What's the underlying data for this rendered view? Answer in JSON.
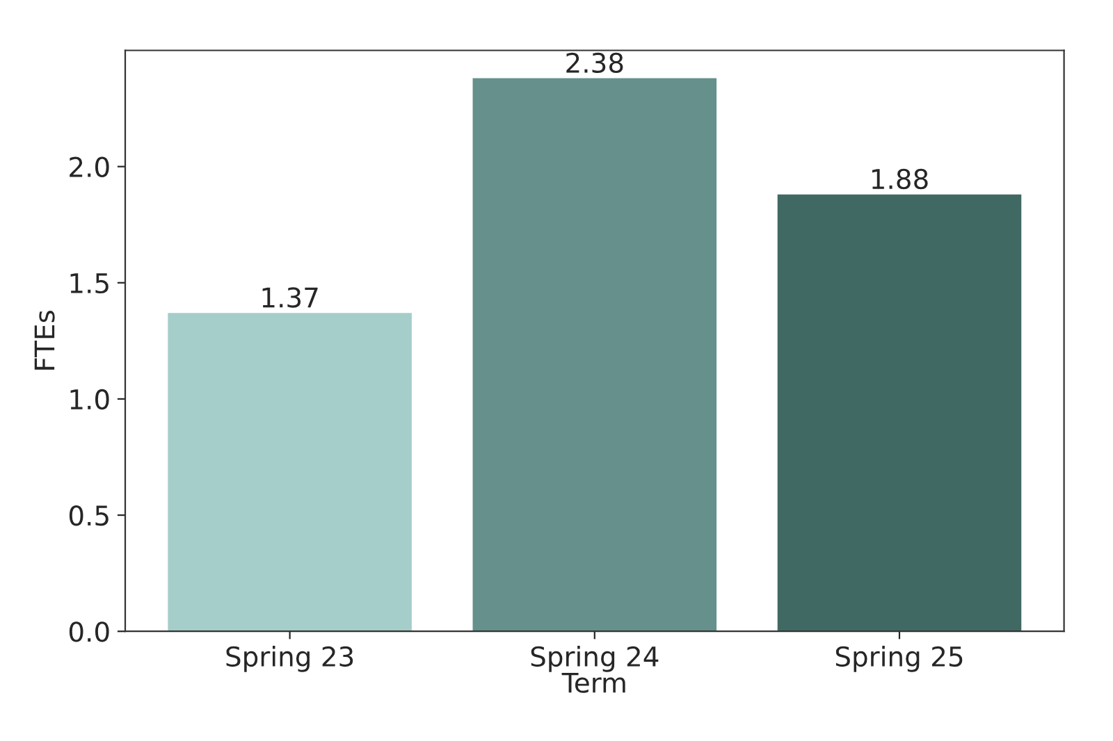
{
  "chart_data": {
    "type": "bar",
    "xlabel": "Term",
    "ylabel": "FTEs",
    "categories": [
      "Spring 23",
      "Spring 24",
      "Spring 25"
    ],
    "values": [
      1.37,
      2.38,
      1.88
    ],
    "colors": [
      "#a5cdc9",
      "#65908c",
      "#416964"
    ],
    "ylim": [
      0,
      2.5
    ],
    "yticks": [
      {
        "value": 0,
        "label": "0.0"
      },
      0.5,
      {
        "value": 1,
        "label": "1.0"
      },
      1.5,
      {
        "value": 2,
        "label": "2.0"
      }
    ],
    "data_labels": true,
    "grid": false
  }
}
